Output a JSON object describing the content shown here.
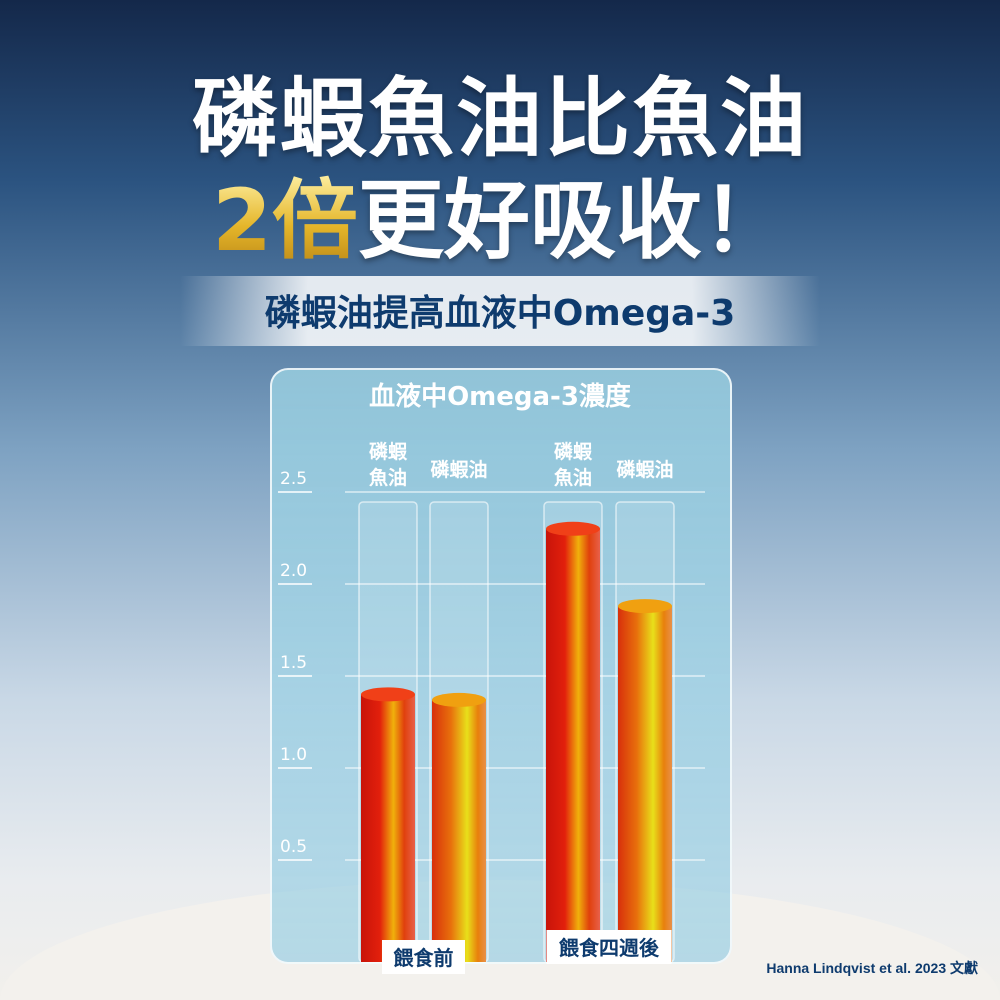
{
  "headline": {
    "line1": "磷蝦魚油比魚油",
    "line2_highlight": "2倍",
    "line2_rest": "更好吸收！"
  },
  "subtitle": "磷蝦油提高血液中Omega-3",
  "citation": "Hanna Lindqvist et al. 2023 文獻",
  "colors": {
    "title": "#ffffff",
    "highlight": "#e5b62a",
    "navy": "#0e3b6e",
    "liquid_red": "#e0200c",
    "liquid_yellow": "#f2c40c"
  },
  "chart_data": {
    "type": "bar",
    "title": "血液中Omega-3濃度",
    "categories": [
      "餵食前",
      "餵食四週後"
    ],
    "series": [
      {
        "name": "磷蝦魚油",
        "values": [
          1.4,
          2.3
        ]
      },
      {
        "name": "磷蝦油",
        "values": [
          1.37,
          1.88
        ]
      }
    ],
    "yticks": [
      "0.5",
      "1.0",
      "1.5",
      "2.0",
      "2.5"
    ],
    "ylim": [
      0,
      2.5
    ],
    "grid": true
  }
}
